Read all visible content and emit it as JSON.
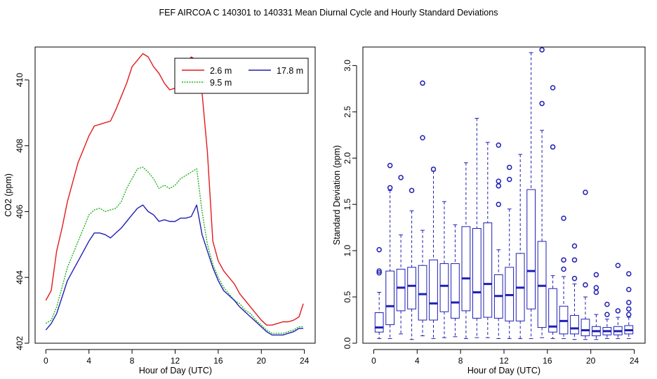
{
  "figure": {
    "title": "FEF   AIRCOA C   140301 to 140331   Mean Diurnal Cycle and Hourly Standard Deviations"
  },
  "chart_data": [
    {
      "type": "line",
      "title": "",
      "xlabel": "Hour of Day (UTC)",
      "ylabel": "CO2 (ppm)",
      "xlim": [
        -1,
        25
      ],
      "ylim": [
        402,
        411
      ],
      "x_ticks": [
        0,
        4,
        8,
        12,
        16,
        20,
        24
      ],
      "x_tick_labels": [
        "0",
        "4",
        "8",
        "12",
        "16",
        "20",
        "24"
      ],
      "y_ticks": [
        402,
        404,
        406,
        408,
        410
      ],
      "y_tick_labels": [
        "402",
        "404",
        "406",
        "408",
        "410"
      ],
      "legend": {
        "position": "top-right",
        "entries": [
          {
            "label": "2.6 m",
            "color": "#e31a1c"
          },
          {
            "label": "9.5 m",
            "color": "#22b222"
          },
          {
            "label": "17.8 m",
            "color": "#1f1fb4"
          }
        ]
      },
      "series": [
        {
          "name": "2.6 m",
          "color": "#e31a1c",
          "x": [
            0,
            0.5,
            1,
            1.5,
            2,
            2.5,
            3,
            3.5,
            4,
            4.5,
            5,
            5.5,
            6,
            6.5,
            7,
            7.5,
            8,
            8.5,
            9,
            9.5,
            10,
            10.5,
            11,
            11.5,
            12,
            12.5,
            13,
            13.5,
            14,
            14.5,
            15,
            15.5,
            16,
            16.5,
            17,
            17.5,
            18,
            18.5,
            19,
            19.5,
            20,
            20.5,
            21,
            21.5,
            22,
            22.5,
            23,
            23.5,
            23.9
          ],
          "y": [
            403.3,
            403.6,
            404.8,
            405.5,
            406.3,
            406.9,
            407.5,
            407.9,
            408.3,
            408.6,
            408.65,
            408.7,
            408.75,
            409.1,
            409.5,
            409.9,
            410.4,
            410.6,
            410.8,
            410.7,
            410.4,
            410.2,
            409.9,
            409.7,
            409.75,
            410.0,
            410.5,
            410.7,
            410.6,
            409.6,
            407.8,
            405.1,
            404.5,
            404.2,
            404.0,
            403.8,
            403.5,
            403.3,
            403.1,
            402.9,
            402.7,
            402.55,
            402.55,
            402.6,
            402.65,
            402.65,
            402.7,
            402.8,
            403.2
          ]
        },
        {
          "name": "9.5 m",
          "color": "#22b222",
          "x": [
            0,
            0.5,
            1,
            1.5,
            2,
            2.5,
            3,
            3.5,
            4,
            4.5,
            5,
            5.5,
            6,
            6.5,
            7,
            7.5,
            8,
            8.5,
            9,
            9.5,
            10,
            10.5,
            11,
            11.5,
            12,
            12.5,
            13,
            13.5,
            14,
            14.5,
            15,
            15.5,
            16,
            16.5,
            17,
            17.5,
            18,
            18.5,
            19,
            19.5,
            20,
            20.5,
            21,
            21.5,
            22,
            22.5,
            23,
            23.5,
            23.9
          ],
          "y": [
            402.6,
            402.7,
            403.1,
            403.7,
            404.3,
            404.7,
            405.1,
            405.5,
            405.9,
            406.05,
            406.1,
            406.0,
            406.05,
            406.1,
            406.3,
            406.7,
            407.0,
            407.3,
            407.35,
            407.2,
            407.0,
            406.7,
            406.8,
            406.7,
            406.8,
            407.0,
            407.1,
            407.2,
            407.3,
            406.0,
            405.0,
            404.4,
            404.0,
            403.7,
            403.5,
            403.3,
            403.2,
            403.0,
            402.9,
            402.7,
            402.55,
            402.4,
            402.3,
            402.3,
            402.3,
            402.35,
            402.4,
            402.5,
            402.5
          ]
        },
        {
          "name": "17.8 m",
          "color": "#1f1fb4",
          "x": [
            0,
            0.5,
            1,
            1.5,
            2,
            2.5,
            3,
            3.5,
            4,
            4.5,
            5,
            5.5,
            6,
            6.5,
            7,
            7.5,
            8,
            8.5,
            9,
            9.5,
            10,
            10.5,
            11,
            11.5,
            12,
            12.5,
            13,
            13.5,
            14,
            14.5,
            15,
            15.5,
            16,
            16.5,
            17,
            17.5,
            18,
            18.5,
            19,
            19.5,
            20,
            20.5,
            21,
            21.5,
            22,
            22.5,
            23,
            23.5,
            23.9
          ],
          "y": [
            402.4,
            402.6,
            402.9,
            403.4,
            403.9,
            404.2,
            404.5,
            404.8,
            405.1,
            405.35,
            405.35,
            405.3,
            405.2,
            405.35,
            405.5,
            405.7,
            405.9,
            406.1,
            406.2,
            406.0,
            405.9,
            405.7,
            405.75,
            405.7,
            405.7,
            405.8,
            405.8,
            405.85,
            406.2,
            405.3,
            404.8,
            404.3,
            403.9,
            403.6,
            403.45,
            403.3,
            403.1,
            402.95,
            402.8,
            402.65,
            402.5,
            402.35,
            402.25,
            402.25,
            402.25,
            402.3,
            402.35,
            402.45,
            402.45
          ]
        }
      ]
    },
    {
      "type": "box",
      "title": "",
      "xlabel": "Hour of Day (UTC)",
      "ylabel": "Standard Deviation (ppm)",
      "xlim": [
        -1,
        25
      ],
      "ylim": [
        0,
        3.2
      ],
      "x_ticks": [
        0,
        4,
        8,
        12,
        16,
        20,
        24
      ],
      "x_tick_labels": [
        "0",
        "4",
        "8",
        "12",
        "16",
        "20",
        "24"
      ],
      "y_ticks": [
        0.0,
        0.5,
        1.0,
        1.5,
        2.0,
        2.5,
        3.0
      ],
      "y_tick_labels": [
        "0.0",
        "0.5",
        "1.0",
        "1.5",
        "2.0",
        "2.5",
        "3.0"
      ],
      "color": "#1f1fb4",
      "boxes": [
        {
          "hour": 0.5,
          "low": 0.05,
          "q1": 0.12,
          "median": 0.17,
          "q3": 0.33,
          "high": 0.55,
          "outliers": [
            0.76,
            0.78,
            1.01
          ]
        },
        {
          "hour": 1.5,
          "low": 0.05,
          "q1": 0.2,
          "median": 0.4,
          "q3": 0.78,
          "high": 1.65,
          "outliers": [
            1.68,
            1.92
          ]
        },
        {
          "hour": 2.5,
          "low": 0.1,
          "q1": 0.35,
          "median": 0.6,
          "q3": 0.8,
          "high": 1.17,
          "outliers": [
            1.79
          ]
        },
        {
          "hour": 3.5,
          "low": 0.04,
          "q1": 0.37,
          "median": 0.62,
          "q3": 0.82,
          "high": 1.43,
          "outliers": [
            1.65
          ]
        },
        {
          "hour": 4.5,
          "low": 0.08,
          "q1": 0.25,
          "median": 0.53,
          "q3": 0.84,
          "high": 1.22,
          "outliers": [
            2.22,
            2.81
          ]
        },
        {
          "hour": 5.5,
          "low": 0.05,
          "q1": 0.25,
          "median": 0.43,
          "q3": 0.9,
          "high": 1.86,
          "outliers": [
            1.88
          ]
        },
        {
          "hour": 6.5,
          "low": 0.06,
          "q1": 0.34,
          "median": 0.62,
          "q3": 0.86,
          "high": 1.53,
          "outliers": []
        },
        {
          "hour": 7.5,
          "low": 0.07,
          "q1": 0.27,
          "median": 0.44,
          "q3": 0.86,
          "high": 1.28,
          "outliers": []
        },
        {
          "hour": 8.5,
          "low": 0.05,
          "q1": 0.35,
          "median": 0.7,
          "q3": 1.26,
          "high": 1.95,
          "outliers": []
        },
        {
          "hour": 9.5,
          "low": 0.06,
          "q1": 0.27,
          "median": 0.55,
          "q3": 1.24,
          "high": 2.43,
          "outliers": []
        },
        {
          "hour": 10.5,
          "low": 0.06,
          "q1": 0.28,
          "median": 0.64,
          "q3": 1.3,
          "high": 2.17,
          "outliers": []
        },
        {
          "hour": 11.5,
          "low": 0.05,
          "q1": 0.27,
          "median": 0.51,
          "q3": 0.74,
          "high": 1.01,
          "outliers": [
            1.5,
            1.7,
            1.75,
            2.14
          ]
        },
        {
          "hour": 12.5,
          "low": 0.05,
          "q1": 0.24,
          "median": 0.52,
          "q3": 0.82,
          "high": 1.45,
          "outliers": [
            1.77,
            1.9
          ]
        },
        {
          "hour": 13.5,
          "low": 0.05,
          "q1": 0.24,
          "median": 0.6,
          "q3": 0.97,
          "high": 2.04,
          "outliers": []
        },
        {
          "hour": 14.5,
          "low": 0.05,
          "q1": 0.37,
          "median": 0.78,
          "q3": 1.66,
          "high": 3.14,
          "outliers": []
        },
        {
          "hour": 15.5,
          "low": 0.06,
          "q1": 0.17,
          "median": 0.62,
          "q3": 1.1,
          "high": 2.3,
          "outliers": [
            2.59,
            3.17
          ]
        },
        {
          "hour": 16.5,
          "low": 0.05,
          "q1": 0.12,
          "median": 0.18,
          "q3": 0.59,
          "high": 0.73,
          "outliers": [
            2.12,
            2.76
          ]
        },
        {
          "hour": 17.5,
          "low": 0.05,
          "q1": 0.1,
          "median": 0.24,
          "q3": 0.4,
          "high": 0.72,
          "outliers": [
            0.8,
            0.9,
            1.35
          ]
        },
        {
          "hour": 18.5,
          "low": 0.04,
          "q1": 0.1,
          "median": 0.16,
          "q3": 0.3,
          "high": 0.64,
          "outliers": [
            0.7,
            0.9,
            1.05
          ]
        },
        {
          "hour": 19.5,
          "low": 0.04,
          "q1": 0.08,
          "median": 0.14,
          "q3": 0.26,
          "high": 0.5,
          "outliers": [
            0.63,
            1.63
          ]
        },
        {
          "hour": 20.5,
          "low": 0.04,
          "q1": 0.08,
          "median": 0.13,
          "q3": 0.18,
          "high": 0.31,
          "outliers": [
            0.55,
            0.6,
            0.74
          ]
        },
        {
          "hour": 21.5,
          "low": 0.05,
          "q1": 0.09,
          "median": 0.13,
          "q3": 0.17,
          "high": 0.26,
          "outliers": [
            0.31,
            0.42
          ]
        },
        {
          "hour": 22.5,
          "low": 0.05,
          "q1": 0.09,
          "median": 0.13,
          "q3": 0.18,
          "high": 0.28,
          "outliers": [
            0.35,
            0.84
          ]
        },
        {
          "hour": 23.5,
          "low": 0.05,
          "q1": 0.1,
          "median": 0.14,
          "q3": 0.19,
          "high": 0.28,
          "outliers": [
            0.31,
            0.37,
            0.44,
            0.58,
            0.75
          ]
        }
      ]
    }
  ]
}
